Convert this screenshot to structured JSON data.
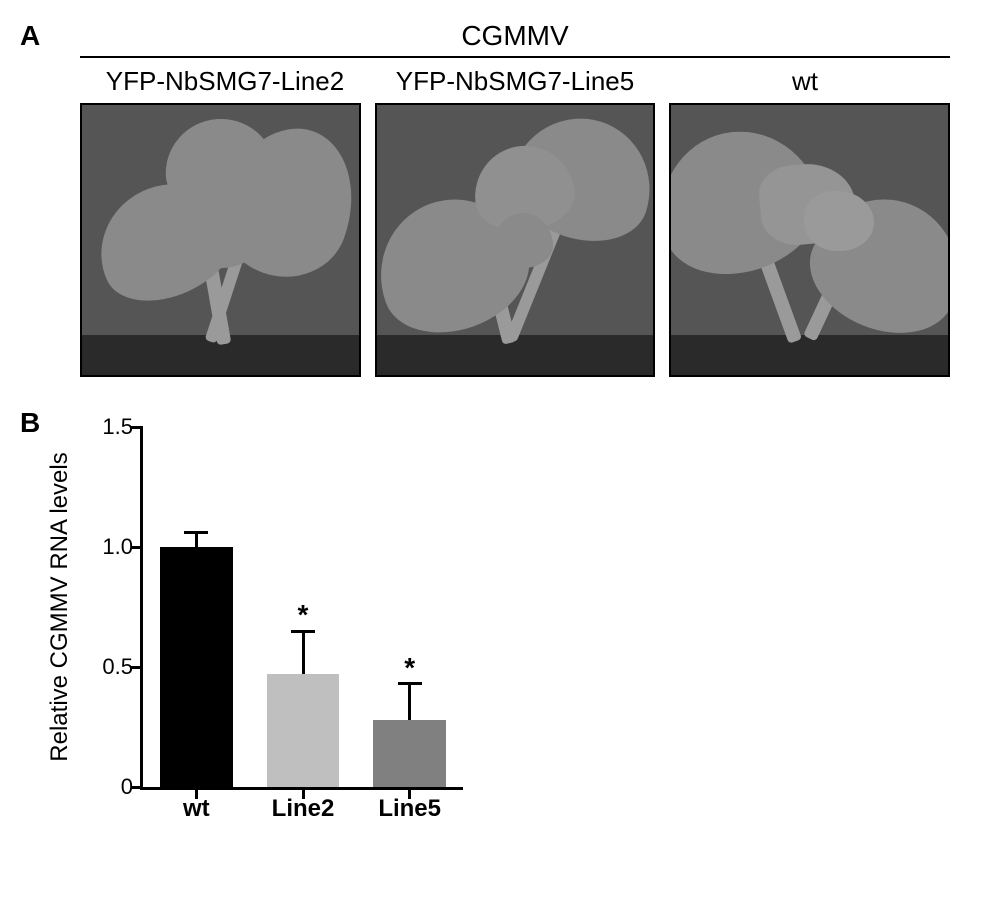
{
  "panelA": {
    "label": "A",
    "header": "CGMMV",
    "columns": [
      "YFP-NbSMG7-Line2",
      "YFP-NbSMG7-Line5",
      "wt"
    ]
  },
  "panelB": {
    "label": "B",
    "chart": {
      "type": "bar",
      "ylabel": "Relative CGMMV RNA levels",
      "ylim": [
        0,
        1.5
      ],
      "yticks": [
        0,
        0.5,
        1.0,
        1.5
      ],
      "ytick_labels": [
        "0",
        "0.5",
        "1.0",
        "1.5"
      ],
      "categories": [
        "wt",
        "Line2",
        "Line5"
      ],
      "values": [
        1.0,
        0.47,
        0.28
      ],
      "err_up": [
        0.06,
        0.18,
        0.15
      ],
      "sig": [
        "",
        "*",
        "*"
      ],
      "bar_colors": [
        "#000000",
        "#bfbfbf",
        "#808080"
      ],
      "bar_width": 0.68,
      "background_color": "#ffffff",
      "axis_color": "#000000",
      "label_fontsize": 24,
      "tick_fontsize": 22
    }
  }
}
